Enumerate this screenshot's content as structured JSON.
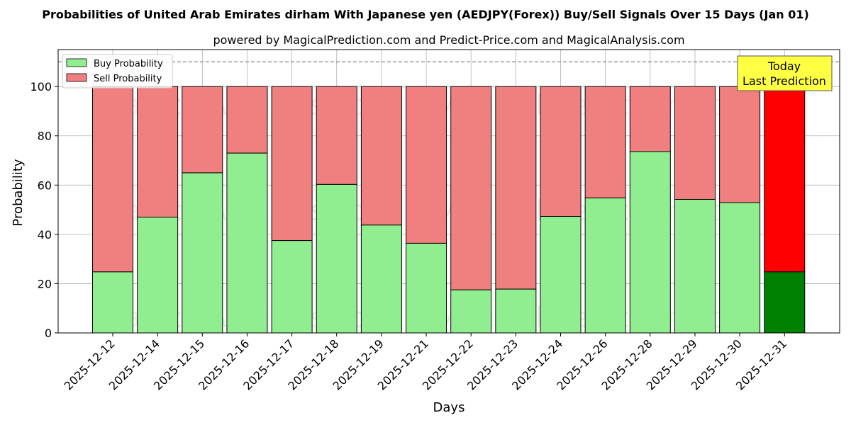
{
  "chart_data": {
    "type": "bar",
    "stacked": true,
    "title": "Probabilities of United Arab Emirates dirham With Japanese yen (AEDJPY(Forex)) Buy/Sell Signals Over 15 Days (Jan 01)",
    "subtitle": "powered by MagicalPrediction.com and Predict-Price.com and MagicalAnalysis.com",
    "xlabel": "Days",
    "ylabel": "Probability",
    "ylim": [
      0,
      115
    ],
    "yticks": [
      0,
      20,
      40,
      60,
      80,
      100
    ],
    "reference_line": 110,
    "grid": true,
    "legend_position": "top-left",
    "categories": [
      "2025-12-12",
      "2025-12-14",
      "2025-12-15",
      "2025-12-16",
      "2025-12-17",
      "2025-12-18",
      "2025-12-19",
      "2025-12-21",
      "2025-12-22",
      "2025-12-23",
      "2025-12-24",
      "2025-12-26",
      "2025-12-28",
      "2025-12-29",
      "2025-12-30",
      "2025-12-31"
    ],
    "series": [
      {
        "name": "Buy Probability",
        "color": "#90ee90",
        "highlight_color": "#008000",
        "values": [
          24.8,
          47.0,
          65.0,
          73.0,
          37.5,
          60.3,
          43.8,
          36.4,
          17.5,
          17.8,
          47.3,
          54.8,
          73.6,
          54.2,
          52.9,
          24.8
        ]
      },
      {
        "name": "Sell Probability",
        "color": "#f08080",
        "highlight_color": "#ff0000",
        "values": [
          75.2,
          53.0,
          35.0,
          27.0,
          62.5,
          39.7,
          56.2,
          63.6,
          82.5,
          82.2,
          52.7,
          45.2,
          26.4,
          45.8,
          47.1,
          75.2
        ]
      }
    ],
    "annotation": {
      "line1": "Today",
      "line2": "Last Prediction",
      "category": "2025-12-31",
      "background": "#ffff44"
    },
    "watermarks": [
      "MagicalAnalysis.com",
      "MagicalPrediction.com"
    ]
  }
}
